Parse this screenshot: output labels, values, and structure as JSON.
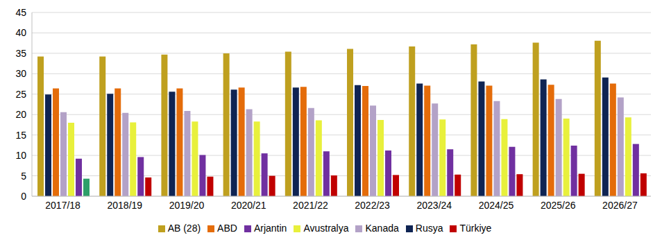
{
  "chart_data": {
    "type": "bar",
    "categories": [
      "2017/18",
      "2018/19",
      "2019/20",
      "2020/21",
      "2021/22",
      "2022/23",
      "2023/24",
      "2024/25",
      "2025/26",
      "2026/27"
    ],
    "series": [
      {
        "name": "AB (28)",
        "color": "#bfa01f",
        "values": [
          34.2,
          34.2,
          34.7,
          35.0,
          35.4,
          36.1,
          36.7,
          37.2,
          37.6,
          38.1
        ]
      },
      {
        "name": "Rusya",
        "color": "#0f2453",
        "values": [
          24.9,
          25.1,
          25.6,
          26.1,
          26.6,
          27.2,
          27.6,
          28.1,
          28.6,
          29.1
        ]
      },
      {
        "name": "ABD",
        "color": "#e46c0a",
        "values": [
          26.4,
          26.4,
          26.4,
          26.6,
          26.8,
          27.0,
          27.1,
          27.1,
          27.3,
          27.6
        ]
      },
      {
        "name": "Kanada",
        "color": "#b3a2c7",
        "values": [
          20.6,
          20.4,
          20.9,
          21.3,
          21.6,
          22.2,
          22.7,
          23.3,
          23.8,
          24.2
        ]
      },
      {
        "name": "Avustralya",
        "color": "#e8f03c",
        "values": [
          18.0,
          18.1,
          18.3,
          18.3,
          18.6,
          18.7,
          18.8,
          18.9,
          19.0,
          19.3
        ]
      },
      {
        "name": "Arjantin",
        "color": "#7030a0",
        "values": [
          9.2,
          9.6,
          10.1,
          10.5,
          11.0,
          11.2,
          11.5,
          12.1,
          12.4,
          12.8
        ]
      },
      {
        "name": "Türkiye",
        "color": "#c00000",
        "colors": [
          "#2e9f6a",
          "#c00000",
          "#c00000",
          "#c00000",
          "#c00000",
          "#c00000",
          "#c00000",
          "#c00000",
          "#c00000",
          "#c00000"
        ],
        "values": [
          4.3,
          4.6,
          4.8,
          5.0,
          5.1,
          5.2,
          5.3,
          5.4,
          5.5,
          5.6
        ]
      }
    ],
    "ylim": [
      0,
      45
    ],
    "yticks": [
      0,
      5,
      10,
      15,
      20,
      25,
      30,
      35,
      40,
      45
    ],
    "grid": true,
    "legend": "bottom"
  }
}
